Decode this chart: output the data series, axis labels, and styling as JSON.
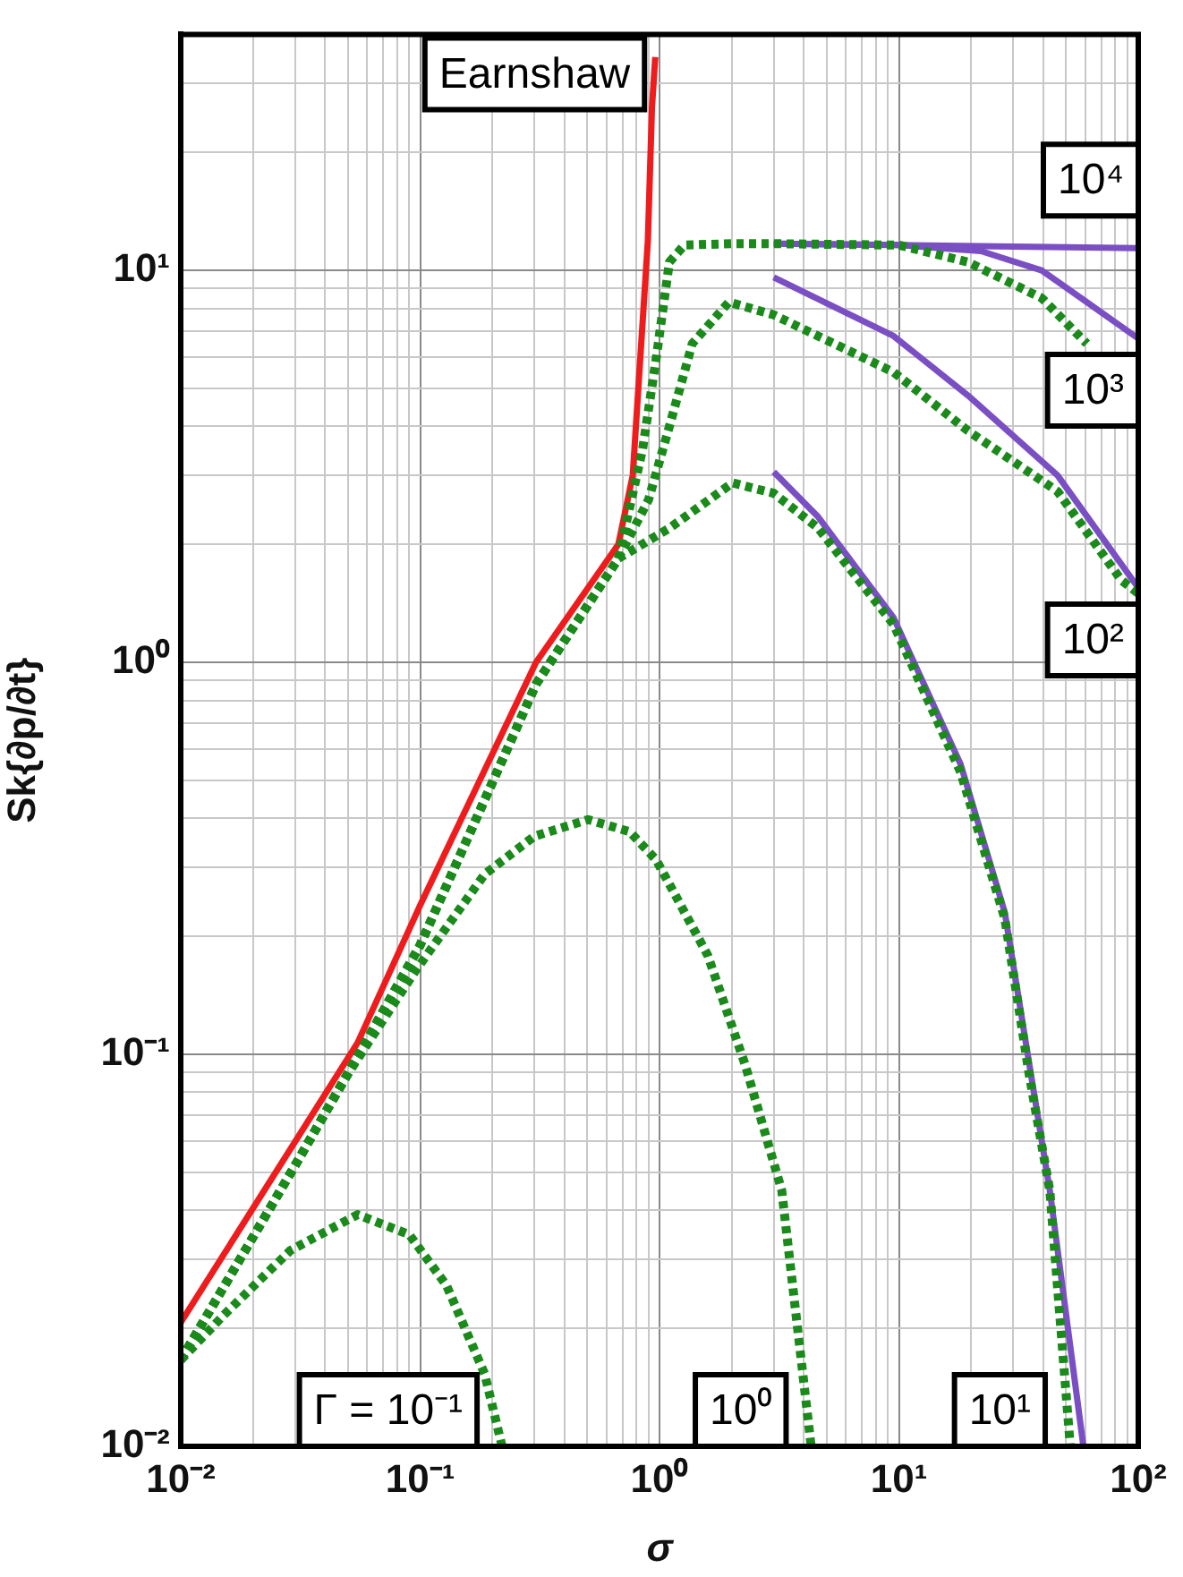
{
  "chart_data": {
    "type": "line",
    "xlabel": "σ",
    "ylabel": "Sk{∂p/∂t}",
    "log": "xy",
    "grid": true,
    "legend": false,
    "marker": "none",
    "xlim": [
      0.01,
      100
    ],
    "ylim": [
      0.01,
      40
    ],
    "xticks": [
      {
        "value": 0.01,
        "label": "10⁻²"
      },
      {
        "value": 0.02,
        "label": null
      },
      {
        "value": 0.03,
        "label": null
      },
      {
        "value": 0.04,
        "label": null
      },
      {
        "value": 0.05,
        "label": null
      },
      {
        "value": 0.06,
        "label": null
      },
      {
        "value": 0.07,
        "label": null
      },
      {
        "value": 0.08,
        "label": null
      },
      {
        "value": 0.09,
        "label": null
      },
      {
        "value": 0.1,
        "label": "10⁻¹"
      },
      {
        "value": 0.2,
        "label": null
      },
      {
        "value": 0.3,
        "label": null
      },
      {
        "value": 0.4,
        "label": null
      },
      {
        "value": 0.5,
        "label": null
      },
      {
        "value": 0.6,
        "label": null
      },
      {
        "value": 0.7,
        "label": null
      },
      {
        "value": 0.8,
        "label": null
      },
      {
        "value": 0.9,
        "label": null
      },
      {
        "value": 1,
        "label": "10⁰"
      },
      {
        "value": 2,
        "label": null
      },
      {
        "value": 3,
        "label": null
      },
      {
        "value": 4,
        "label": null
      },
      {
        "value": 5,
        "label": null
      },
      {
        "value": 6,
        "label": null
      },
      {
        "value": 7,
        "label": null
      },
      {
        "value": 8,
        "label": null
      },
      {
        "value": 9,
        "label": null
      },
      {
        "value": 10,
        "label": "10¹"
      },
      {
        "value": 20,
        "label": null
      },
      {
        "value": 30,
        "label": null
      },
      {
        "value": 40,
        "label": null
      },
      {
        "value": 50,
        "label": null
      },
      {
        "value": 60,
        "label": null
      },
      {
        "value": 70,
        "label": null
      },
      {
        "value": 80,
        "label": null
      },
      {
        "value": 90,
        "label": null
      },
      {
        "value": 100,
        "label": "10²"
      }
    ],
    "yticks": [
      {
        "value": 0.01,
        "label": "10⁻²"
      },
      {
        "value": 0.02,
        "label": null
      },
      {
        "value": 0.03,
        "label": null
      },
      {
        "value": 0.04,
        "label": null
      },
      {
        "value": 0.05,
        "label": null
      },
      {
        "value": 0.06,
        "label": null
      },
      {
        "value": 0.07,
        "label": null
      },
      {
        "value": 0.08,
        "label": null
      },
      {
        "value": 0.09,
        "label": null
      },
      {
        "value": 0.1,
        "label": "10⁻¹"
      },
      {
        "value": 0.2,
        "label": null
      },
      {
        "value": 0.3,
        "label": null
      },
      {
        "value": 0.4,
        "label": null
      },
      {
        "value": 0.5,
        "label": null
      },
      {
        "value": 0.6,
        "label": null
      },
      {
        "value": 0.7,
        "label": null
      },
      {
        "value": 0.8,
        "label": null
      },
      {
        "value": 0.9,
        "label": null
      },
      {
        "value": 1,
        "label": "10⁰"
      },
      {
        "value": 2,
        "label": null
      },
      {
        "value": 3,
        "label": null
      },
      {
        "value": 4,
        "label": null
      },
      {
        "value": 5,
        "label": null
      },
      {
        "value": 6,
        "label": null
      },
      {
        "value": 7,
        "label": null
      },
      {
        "value": 8,
        "label": null
      },
      {
        "value": 9,
        "label": null
      },
      {
        "value": 10,
        "label": "10¹"
      },
      {
        "value": 20,
        "label": null
      },
      {
        "value": 30,
        "label": null
      }
    ],
    "series": [
      {
        "name": "Γ = 10⁻¹",
        "color": "#1a8a1a",
        "line_style": "dotted",
        "x": [
          0.01,
          0.0151,
          0.0287,
          0.0548,
          0.09,
          0.129,
          0.186,
          0.22
        ],
        "values": [
          0.0166,
          0.0216,
          0.0316,
          0.039,
          0.0347,
          0.0257,
          0.0153,
          0.01
        ]
      },
      {
        "name": "10⁰",
        "color": "#1a8a1a",
        "line_style": "dotted",
        "x": [
          0.01,
          0.03,
          0.051,
          0.096,
          0.186,
          0.3,
          0.503,
          0.75,
          0.97,
          1.59,
          2.28,
          3.24,
          4.3
        ],
        "values": [
          0.0166,
          0.052,
          0.091,
          0.164,
          0.288,
          0.36,
          0.397,
          0.37,
          0.313,
          0.179,
          0.094,
          0.045,
          0.01
        ]
      },
      {
        "name": "10¹",
        "color": "#1a8a1a",
        "line_style": "dotted",
        "x": [
          0.01,
          0.03,
          0.059,
          0.1,
          0.305,
          0.673,
          1.1,
          2.02,
          3,
          4.6,
          9.5,
          18.1,
          27.7,
          35,
          42.7,
          52
        ],
        "values": [
          0.0166,
          0.052,
          0.107,
          0.19,
          0.88,
          1.84,
          2.2,
          2.87,
          2.7,
          2.2,
          1.25,
          0.525,
          0.222,
          0.089,
          0.045,
          0.01
        ]
      },
      {
        "name": "10²",
        "color": "#1a8a1a",
        "line_style": "dotted",
        "x": [
          0.01,
          0.03,
          0.059,
          0.1,
          0.305,
          0.673,
          0.9,
          1.1,
          1.37,
          1.95,
          3,
          9.5,
          19.4,
          46,
          85,
          100
        ],
        "values": [
          0.0166,
          0.052,
          0.107,
          0.19,
          0.88,
          1.84,
          2.6,
          4,
          6.5,
          8.3,
          7.7,
          5.5,
          3.9,
          2.73,
          1.62,
          1.5
        ]
      },
      {
        "name": "10³",
        "color": "#1a8a1a",
        "line_style": "dotted",
        "x": [
          0.01,
          0.03,
          0.059,
          0.1,
          0.305,
          0.673,
          0.85,
          0.97,
          1.1,
          1.27,
          2,
          3,
          10,
          19.4,
          39.5,
          61
        ],
        "values": [
          0.0166,
          0.052,
          0.107,
          0.19,
          0.88,
          1.84,
          3.5,
          6,
          10.5,
          11.6,
          11.7,
          11.7,
          11.6,
          10.5,
          8.5,
          6.5
        ]
      },
      {
        "color": "#7b4fc4",
        "line_style": "solid",
        "x": [
          3,
          4.6,
          9.5,
          18.1,
          27.7,
          35,
          42.7,
          59
        ],
        "values": [
          3.06,
          2.35,
          1.3,
          0.55,
          0.23,
          0.095,
          0.045,
          0.01
        ]
      },
      {
        "color": "#7b4fc4",
        "line_style": "solid",
        "x": [
          3,
          9.5,
          19.4,
          46,
          100
        ],
        "values": [
          9.6,
          6.8,
          4.8,
          3,
          1.55
        ]
      },
      {
        "color": "#7b4fc4",
        "line_style": "solid",
        "x": [
          3,
          10,
          22,
          39.5,
          61,
          100
        ],
        "values": [
          11.7,
          11.6,
          11.2,
          10,
          8.3,
          6.7
        ]
      },
      {
        "name": "10⁴",
        "color": "#7b4fc4",
        "line_style": "solid",
        "x": [
          3,
          10,
          30,
          100
        ],
        "values": [
          11.7,
          11.6,
          11.5,
          11.4
        ]
      },
      {
        "name": "Earnshaw",
        "color": "#ee1c1c",
        "line_style": "solid",
        "x": [
          0.01,
          0.0548,
          0.1,
          0.305,
          0.673,
          0.773,
          0.894,
          0.93,
          0.96
        ],
        "values": [
          0.0207,
          0.107,
          0.24,
          1,
          2,
          3,
          11.9,
          26,
          35
        ]
      }
    ]
  }
}
